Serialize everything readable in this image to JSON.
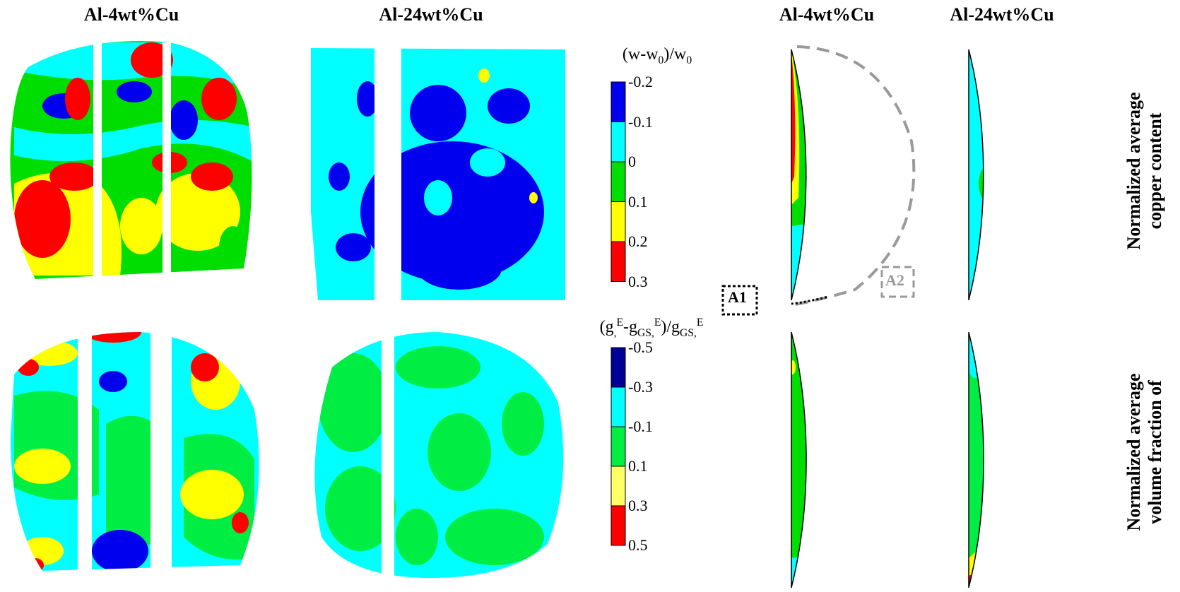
{
  "titles": {
    "map_left_top": "Al-4wt%Cu",
    "map_mid_top": "Al-24wt%Cu",
    "sim_left_top": "Al-4wt%Cu",
    "sim_right_top": "Al-24wt%Cu"
  },
  "colorbar_top": {
    "ticks": [
      "-0.2",
      "-0.1",
      "0",
      "0.1",
      "0.2",
      "0.3"
    ],
    "colors": [
      "#0000ee",
      "#00ffff",
      "#00dd00",
      "#ffff00",
      "#ff0000"
    ]
  },
  "colorbar_bottom": {
    "ticks": [
      "-0.5",
      "-0.3",
      "-0.1",
      "0.1",
      "0.3",
      "0.5"
    ],
    "colors": [
      "#000099",
      "#00ffff",
      "#00ee44",
      "#ffff66",
      "#ff0000"
    ]
  },
  "row_labels": {
    "top_line1": "Normalized average",
    "top_line2": "copper content",
    "bottom_line1": "Normalized average",
    "bottom_line2": "volume fraction of"
  },
  "markers": {
    "a1": "A1",
    "a2": "A2"
  }
}
